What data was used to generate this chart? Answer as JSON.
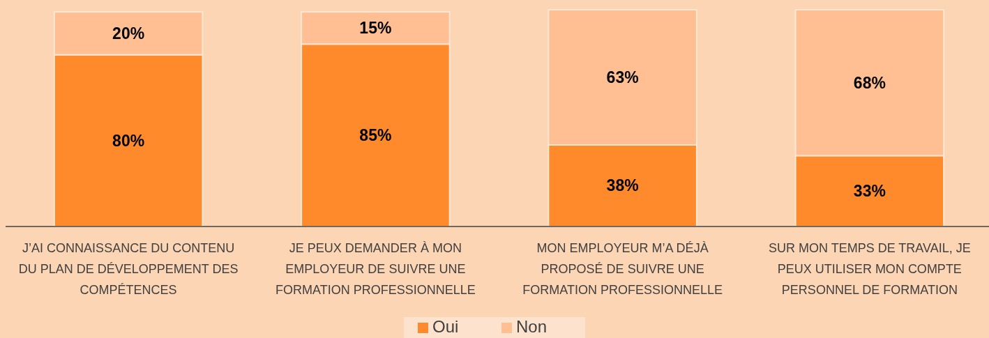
{
  "chart_data": {
    "type": "bar",
    "stacked": true,
    "legend": "bottom",
    "categories": [
      "J’AI CONNAISSANCE DU CONTENU DU PLAN DE DÉVELOPPEMENT DES COMPÉTENCES",
      "JE PEUX DEMANDER À MON EMPLOYEUR DE SUIVRE UNE FORMATION PROFESSIONNELLE",
      "MON EMPLOYEUR M’A DÉJÀ PROPOSÉ DE SUIVRE UNE FORMATION PROFESSIONNELLE",
      "SUR MON TEMPS DE TRAVAIL, JE PEUX UTILISER MON COMPTE PERSONNEL DE FORMATION"
    ],
    "series": [
      {
        "name": "Oui",
        "color": "#fe8a2c",
        "values": [
          80,
          85,
          38,
          33
        ],
        "value_labels": [
          "80%",
          "85%",
          "38%",
          "33%"
        ]
      },
      {
        "name": "Non",
        "color": "#ffbf92",
        "values": [
          20,
          15,
          63,
          68
        ],
        "value_labels": [
          "20%",
          "15%",
          "63%",
          "68%"
        ]
      }
    ]
  }
}
